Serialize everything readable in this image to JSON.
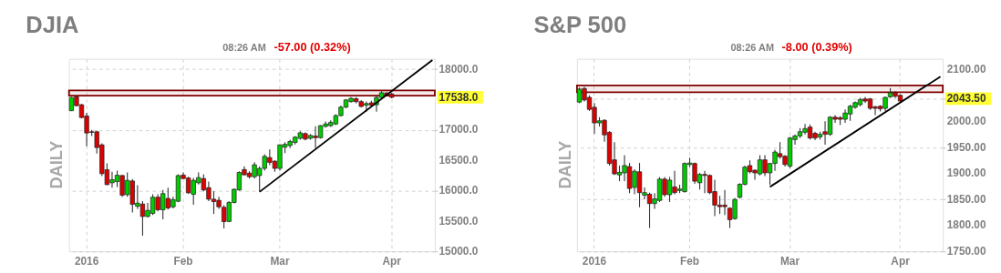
{
  "chart_data": [
    {
      "type": "candlestick",
      "title": "DJIA",
      "categories": [
        null,
        null,
        null,
        "2016",
        null,
        null,
        null,
        null,
        null,
        null,
        null,
        null,
        null,
        null,
        null,
        null,
        null,
        null,
        null,
        null,
        null,
        null,
        "Feb",
        null,
        null,
        null,
        null,
        null,
        null,
        null,
        null,
        null,
        null,
        null,
        null,
        null,
        null,
        null,
        null,
        null,
        null,
        "Mar",
        null,
        null,
        null,
        null,
        null,
        null,
        null,
        null,
        null,
        null,
        null,
        null,
        null,
        null,
        null,
        null,
        null,
        null,
        null,
        null,
        null,
        "Apr",
        null,
        null,
        null,
        null,
        null,
        null,
        null,
        null
      ],
      "ohlc": [
        [
          17316,
          17545,
          17310,
          17534
        ],
        [
          17545,
          17560,
          17390,
          17400
        ],
        [
          17415,
          17430,
          17190,
          17205
        ],
        [
          17230,
          17280,
          16730,
          16950
        ],
        [
          16970,
          17000,
          16900,
          16960
        ],
        [
          16970,
          16990,
          16610,
          16710
        ],
        [
          16755,
          16780,
          16240,
          16280
        ],
        [
          16345,
          16450,
          16090,
          16100
        ],
        [
          16130,
          16310,
          16050,
          16180
        ],
        [
          16150,
          16330,
          16060,
          16255
        ],
        [
          16250,
          16260,
          15900,
          15925
        ],
        [
          15935,
          16300,
          15900,
          16170
        ],
        [
          16160,
          16190,
          15640,
          15775
        ],
        [
          15745,
          16090,
          15700,
          15795
        ],
        [
          15780,
          15830,
          15260,
          15575
        ],
        [
          15575,
          15800,
          15560,
          15675
        ],
        [
          15625,
          15940,
          15600,
          15893
        ],
        [
          15893,
          15940,
          15660,
          15685
        ],
        [
          15685,
          16012,
          15530,
          15952
        ],
        [
          15873,
          16050,
          15690,
          15715
        ],
        [
          15735,
          15900,
          15710,
          15853
        ],
        [
          15826,
          16270,
          15810,
          16249
        ],
        [
          16257,
          16300,
          16190,
          16200
        ],
        [
          16210,
          16230,
          15950,
          15965
        ],
        [
          15940,
          16210,
          15767,
          16170
        ],
        [
          16130,
          16300,
          16100,
          16215
        ],
        [
          16200,
          16270,
          15990,
          16012
        ],
        [
          16050,
          16150,
          15830,
          15860
        ],
        [
          15860,
          15990,
          15616,
          15820
        ],
        [
          15842,
          15900,
          15700,
          15735
        ],
        [
          15727,
          15760,
          15380,
          15490
        ],
        [
          15494,
          15830,
          15480,
          15806
        ],
        [
          15806,
          16040,
          15790,
          16023
        ],
        [
          16012,
          16320,
          16000,
          16300
        ],
        [
          16348,
          16400,
          16250,
          16261
        ],
        [
          16290,
          16320,
          16200,
          16230
        ],
        [
          16230,
          16470,
          16200,
          16427
        ],
        [
          16249,
          16400,
          15990,
          16367
        ],
        [
          16367,
          16600,
          16330,
          16565
        ],
        [
          16545,
          16680,
          16420,
          16466
        ],
        [
          16486,
          16500,
          16310,
          16367
        ],
        [
          16367,
          16760,
          16330,
          16755
        ],
        [
          16715,
          16800,
          16620,
          16763
        ],
        [
          16743,
          16840,
          16700,
          16810
        ],
        [
          16794,
          16900,
          16760,
          16881
        ],
        [
          16862,
          16980,
          16840,
          16953
        ],
        [
          16940,
          16960,
          16830,
          16850
        ],
        [
          16862,
          16930,
          16840,
          16910
        ],
        [
          16900,
          17060,
          16700,
          16873
        ],
        [
          16873,
          17080,
          16860,
          17071
        ],
        [
          17059,
          17140,
          17040,
          17099
        ],
        [
          17071,
          17160,
          17050,
          17126
        ],
        [
          17099,
          17260,
          17080,
          17237
        ],
        [
          17237,
          17400,
          17220,
          17375
        ],
        [
          17375,
          17510,
          17360,
          17494
        ],
        [
          17466,
          17540,
          17450,
          17522
        ],
        [
          17514,
          17540,
          17440,
          17466
        ],
        [
          17466,
          17490,
          17370,
          17387
        ],
        [
          17407,
          17470,
          17300,
          17435
        ],
        [
          17447,
          17480,
          17380,
          17407
        ],
        [
          17415,
          17560,
          17300,
          17534
        ],
        [
          17534,
          17650,
          17520,
          17613
        ],
        [
          17610,
          17620,
          17560,
          17573
        ],
        [
          17590,
          17610,
          17520,
          17538
        ],
        null,
        null,
        null,
        null,
        null,
        null,
        null,
        null
      ],
      "colors": [
        "#00cc00",
        "#dd0000",
        "#dd0000",
        "#dd0000",
        "#dd0000",
        "#dd0000",
        "#dd0000",
        "#dd0000",
        "#00cc00",
        "#00cc00",
        "#dd0000",
        "#00cc00",
        "#dd0000",
        "#00cc00",
        "#dd0000",
        "#00cc00",
        "#00cc00",
        "#dd0000",
        "#00cc00",
        "#dd0000",
        "#00cc00",
        "#00cc00",
        "#dd0000",
        "#dd0000",
        "#00cc00",
        "#00cc00",
        "#dd0000",
        "#dd0000",
        "#dd0000",
        "#dd0000",
        "#dd0000",
        "#00cc00",
        "#00cc00",
        "#00cc00",
        "#dd0000",
        "#dd0000",
        "#00cc00",
        "#00cc00",
        "#00cc00",
        "#dd0000",
        "#dd0000",
        "#00cc00",
        "#00cc00",
        "#00cc00",
        "#00cc00",
        "#00cc00",
        "#dd0000",
        "#00cc00",
        "#dd0000",
        "#00cc00",
        "#00cc00",
        "#00cc00",
        "#00cc00",
        "#00cc00",
        "#00cc00",
        "#00cc00",
        "#dd0000",
        "#dd0000",
        "#00cc00",
        "#dd0000",
        "#00cc00",
        "#00cc00",
        "#dd0000",
        "#dd0000",
        null,
        null,
        null,
        null,
        null,
        null,
        null,
        null
      ],
      "series": [
        {
          "type": "line",
          "color": "#000000",
          "values": [
            null,
            null,
            null,
            null,
            null,
            null,
            null,
            null,
            null,
            null,
            null,
            null,
            null,
            null,
            null,
            null,
            null,
            null,
            null,
            null,
            null,
            null,
            null,
            null,
            null,
            null,
            null,
            null,
            null,
            null,
            null,
            null,
            null,
            null,
            null,
            null,
            null,
            15980,
            null,
            null,
            null,
            null,
            null,
            null,
            null,
            null,
            null,
            null,
            null,
            null,
            null,
            null,
            null,
            null,
            null,
            null,
            null,
            null,
            null,
            null,
            null,
            null,
            null,
            null,
            null,
            null,
            null,
            null,
            null,
            null,
            null,
            18150
          ]
        }
      ],
      "ylim": [
        15000,
        18170
      ],
      "yticks": [
        {
          "value": 15000,
          "label": "15000.0"
        },
        {
          "value": 15500,
          "label": "15500.0"
        },
        {
          "value": 16000,
          "label": "16000.0"
        },
        {
          "value": 16500,
          "label": "16500.0"
        },
        {
          "value": 17000,
          "label": "17000.0"
        },
        {
          "value": 17538,
          "label": "17538.0"
        },
        {
          "value": 18000,
          "label": "18000.0"
        }
      ],
      "grid": true,
      "bands": [
        {
          "axis": "y",
          "from": 17565,
          "to": 17652,
          "color": "#800000"
        }
      ],
      "annotations": [
        "08:26 AM",
        "-57.00 (0.32%)",
        "DAILY"
      ]
    },
    {
      "type": "candlestick",
      "title": "S&P 500",
      "categories": [
        null,
        null,
        null,
        "2016",
        null,
        null,
        null,
        null,
        null,
        null,
        null,
        null,
        null,
        null,
        null,
        null,
        null,
        null,
        null,
        null,
        null,
        null,
        "Feb",
        null,
        null,
        null,
        null,
        null,
        null,
        null,
        null,
        null,
        null,
        null,
        null,
        null,
        null,
        null,
        null,
        null,
        null,
        null,
        "Mar",
        null,
        null,
        null,
        null,
        null,
        null,
        null,
        null,
        null,
        null,
        null,
        null,
        null,
        null,
        null,
        null,
        null,
        null,
        null,
        null,
        null,
        "Apr",
        null,
        null,
        null,
        null,
        null,
        null,
        null,
        null
      ],
      "ohlc": [
        [
          2037,
          2065,
          2035,
          2062
        ],
        [
          2063,
          2066,
          2038,
          2041
        ],
        [
          2046,
          2050,
          2020,
          2023
        ],
        [
          2027,
          2035,
          1976,
          1997
        ],
        [
          1997,
          2008,
          1990,
          2001
        ],
        [
          2002,
          2004,
          1961,
          1974
        ],
        [
          1979,
          1981,
          1915,
          1919
        ],
        [
          1926,
          1960,
          1897,
          1899
        ],
        [
          1897,
          1915,
          1885,
          1902
        ],
        [
          1901,
          1935,
          1885,
          1915
        ],
        [
          1913,
          1920,
          1862,
          1871
        ],
        [
          1873,
          1908,
          1860,
          1904
        ],
        [
          1903,
          1920,
          1835,
          1863
        ],
        [
          1858,
          1873,
          1850,
          1863
        ],
        [
          1860,
          1863,
          1795,
          1842
        ],
        [
          1842,
          1862,
          1832,
          1851
        ],
        [
          1848,
          1893,
          1845,
          1889
        ],
        [
          1889,
          1893,
          1855,
          1859
        ],
        [
          1859,
          1893,
          1845,
          1887
        ],
        [
          1874,
          1905,
          1860,
          1863
        ],
        [
          1867,
          1878,
          1862,
          1870
        ],
        [
          1865,
          1921,
          1863,
          1919
        ],
        [
          1917,
          1930,
          1912,
          1920
        ],
        [
          1919,
          1921,
          1880,
          1885
        ],
        [
          1882,
          1901,
          1869,
          1898
        ],
        [
          1898,
          1905,
          1862,
          1896
        ],
        [
          1896,
          1898,
          1860,
          1863
        ],
        [
          1865,
          1888,
          1818,
          1839
        ],
        [
          1839,
          1857,
          1822,
          1836
        ],
        [
          1839,
          1868,
          1820,
          1836
        ],
        [
          1833,
          1835,
          1795,
          1811
        ],
        [
          1813,
          1853,
          1811,
          1850
        ],
        [
          1854,
          1881,
          1852,
          1879
        ],
        [
          1879,
          1915,
          1877,
          1912
        ],
        [
          1915,
          1925,
          1900,
          1903
        ],
        [
          1906,
          1908,
          1888,
          1901
        ],
        [
          1899,
          1935,
          1896,
          1926
        ],
        [
          1926,
          1935,
          1895,
          1901
        ],
        [
          1901,
          1920,
          1878,
          1919
        ],
        [
          1919,
          1945,
          1905,
          1941
        ],
        [
          1938,
          1960,
          1928,
          1932
        ],
        [
          1933,
          1935,
          1913,
          1917
        ],
        [
          1914,
          1970,
          1910,
          1968
        ],
        [
          1965,
          1975,
          1955,
          1972
        ],
        [
          1972,
          1987,
          1968,
          1980
        ],
        [
          1979,
          1995,
          1975,
          1986
        ],
        [
          1989,
          1994,
          1965,
          1968
        ],
        [
          1977,
          1980,
          1964,
          1968
        ],
        [
          1970,
          1980,
          1965,
          1975
        ],
        [
          1980,
          2000,
          1955,
          1975
        ],
        [
          1975,
          2010,
          1972,
          2008
        ],
        [
          2008,
          2012,
          1997,
          2004
        ],
        [
          2007,
          2010,
          1993,
          2004
        ],
        [
          2004,
          2023,
          1997,
          2016
        ],
        [
          2014,
          2032,
          2001,
          2029
        ],
        [
          2027,
          2038,
          2024,
          2036
        ],
        [
          2032,
          2045,
          2029,
          2042
        ],
        [
          2043,
          2047,
          2035,
          2039
        ],
        [
          2043,
          2045,
          2022,
          2025
        ],
        [
          2028,
          2030,
          2012,
          2025
        ],
        [
          2029,
          2031,
          2019,
          2024
        ],
        [
          2025,
          2048,
          2020,
          2046
        ],
        [
          2047,
          2064,
          2045,
          2055
        ],
        [
          2055,
          2058,
          2045,
          2048
        ],
        [
          2050,
          2052,
          2036,
          2039
        ],
        null,
        null,
        null,
        null,
        null,
        null,
        null,
        null
      ],
      "colors": [
        "#00cc00",
        "#dd0000",
        "#dd0000",
        "#dd0000",
        "#00cc00",
        "#dd0000",
        "#dd0000",
        "#dd0000",
        "#00cc00",
        "#00cc00",
        "#dd0000",
        "#00cc00",
        "#dd0000",
        "#00cc00",
        "#dd0000",
        "#00cc00",
        "#00cc00",
        "#dd0000",
        "#00cc00",
        "#dd0000",
        "#00cc00",
        "#00cc00",
        "#00cc00",
        "#dd0000",
        "#00cc00",
        "#dd0000",
        "#dd0000",
        "#dd0000",
        "#dd0000",
        "#dd0000",
        "#dd0000",
        "#00cc00",
        "#00cc00",
        "#00cc00",
        "#dd0000",
        "#dd0000",
        "#00cc00",
        "#dd0000",
        "#00cc00",
        "#00cc00",
        "#dd0000",
        "#dd0000",
        "#00cc00",
        "#00cc00",
        "#00cc00",
        "#00cc00",
        "#dd0000",
        "#dd0000",
        "#00cc00",
        "#dd0000",
        "#00cc00",
        "#dd0000",
        "#dd0000",
        "#00cc00",
        "#00cc00",
        "#00cc00",
        "#00cc00",
        "#dd0000",
        "#dd0000",
        "#dd0000",
        "#dd0000",
        "#00cc00",
        "#00cc00",
        "#dd0000",
        "#dd0000",
        null,
        null,
        null,
        null,
        null,
        null,
        null,
        null
      ],
      "series": [
        {
          "type": "line",
          "color": "#000000",
          "values": [
            null,
            null,
            null,
            null,
            null,
            null,
            null,
            null,
            null,
            null,
            null,
            null,
            null,
            null,
            null,
            null,
            null,
            null,
            null,
            null,
            null,
            null,
            null,
            null,
            null,
            null,
            null,
            null,
            null,
            null,
            null,
            null,
            null,
            null,
            null,
            null,
            null,
            null,
            1874,
            null,
            null,
            null,
            null,
            null,
            null,
            null,
            null,
            null,
            null,
            null,
            null,
            null,
            null,
            null,
            null,
            null,
            null,
            null,
            null,
            null,
            null,
            null,
            null,
            null,
            null,
            null,
            null,
            null,
            null,
            null,
            null,
            null,
            2086
          ]
        }
      ],
      "ylim": [
        1750,
        2120
      ],
      "yticks": [
        {
          "value": 1750,
          "label": "1750.00"
        },
        {
          "value": 1800,
          "label": "1800.00"
        },
        {
          "value": 1850,
          "label": "1850.00"
        },
        {
          "value": 1900,
          "label": "1900.00"
        },
        {
          "value": 1950,
          "label": "1950.00"
        },
        {
          "value": 2000,
          "label": "2000.00"
        },
        {
          "value": 2043.5,
          "label": "2043.50"
        },
        {
          "value": 2100,
          "label": "2100.00"
        }
      ],
      "grid": true,
      "bands": [
        {
          "axis": "y",
          "from": 2056,
          "to": 2069,
          "color": "#800000"
        }
      ],
      "annotations": [
        "08:26 AM",
        "-8.00 (0.39%)",
        "DAILY"
      ]
    }
  ]
}
